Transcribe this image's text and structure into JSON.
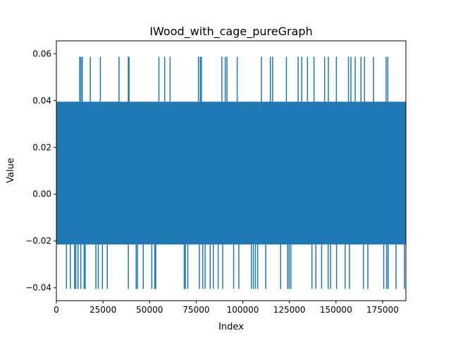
{
  "chart_data": {
    "type": "line",
    "title": "IWood_with_cage_pureGraph",
    "xlabel": "Index",
    "ylabel": "Value",
    "xlim": [
      0,
      187500
    ],
    "ylim": [
      -0.0455,
      0.0655
    ],
    "x_ticks": [
      0,
      25000,
      50000,
      75000,
      100000,
      125000,
      150000,
      175000
    ],
    "x_tick_labels": [
      "0",
      "25000",
      "50000",
      "75000",
      "100000",
      "125000",
      "150000",
      "175000"
    ],
    "y_ticks": [
      -0.04,
      -0.02,
      0.0,
      0.02,
      0.04,
      0.06
    ],
    "y_tick_labels": [
      "−0.04",
      "−0.02",
      "0.00",
      "0.02",
      "0.04",
      "0.06"
    ],
    "grid": false,
    "series": [
      {
        "color": "#1f77b4",
        "dense_band": {
          "x_start": 0,
          "x_end": 187500,
          "y_low": -0.0215,
          "y_high": 0.0395
        },
        "upper_spike_value": 0.0587,
        "upper_spike_x": [
          12500,
          13200,
          13900,
          18200,
          23600,
          33600,
          38600,
          39000,
          55000,
          58100,
          61000,
          76200,
          77200,
          77800,
          88800,
          90600,
          91500,
          97000,
          110000,
          114800,
          116000,
          123400,
          129700,
          131600,
          134700,
          138200,
          143900,
          145900,
          150200,
          156700,
          158000,
          160300,
          163400,
          165300,
          170100,
          176900,
          177800
        ],
        "lower_spike_value": -0.0405,
        "lower_spike_x": [
          5400,
          7500,
          9800,
          10400,
          11600,
          13100,
          14900,
          15500,
          21200,
          22500,
          24700,
          27300,
          38600,
          42800,
          43500,
          46600,
          51200,
          52800,
          53300,
          68600,
          69200,
          70500,
          76700,
          78500,
          79800,
          82500,
          84200,
          86800,
          89200,
          95100,
          97900,
          104600,
          105700,
          106800,
          108000,
          112300,
          120300,
          124100,
          124900,
          125800,
          137100,
          139200,
          142300,
          145800,
          147100,
          150300,
          154900,
          157200,
          164700,
          167100,
          175600,
          177200,
          178000,
          182200,
          186700
        ]
      }
    ]
  }
}
